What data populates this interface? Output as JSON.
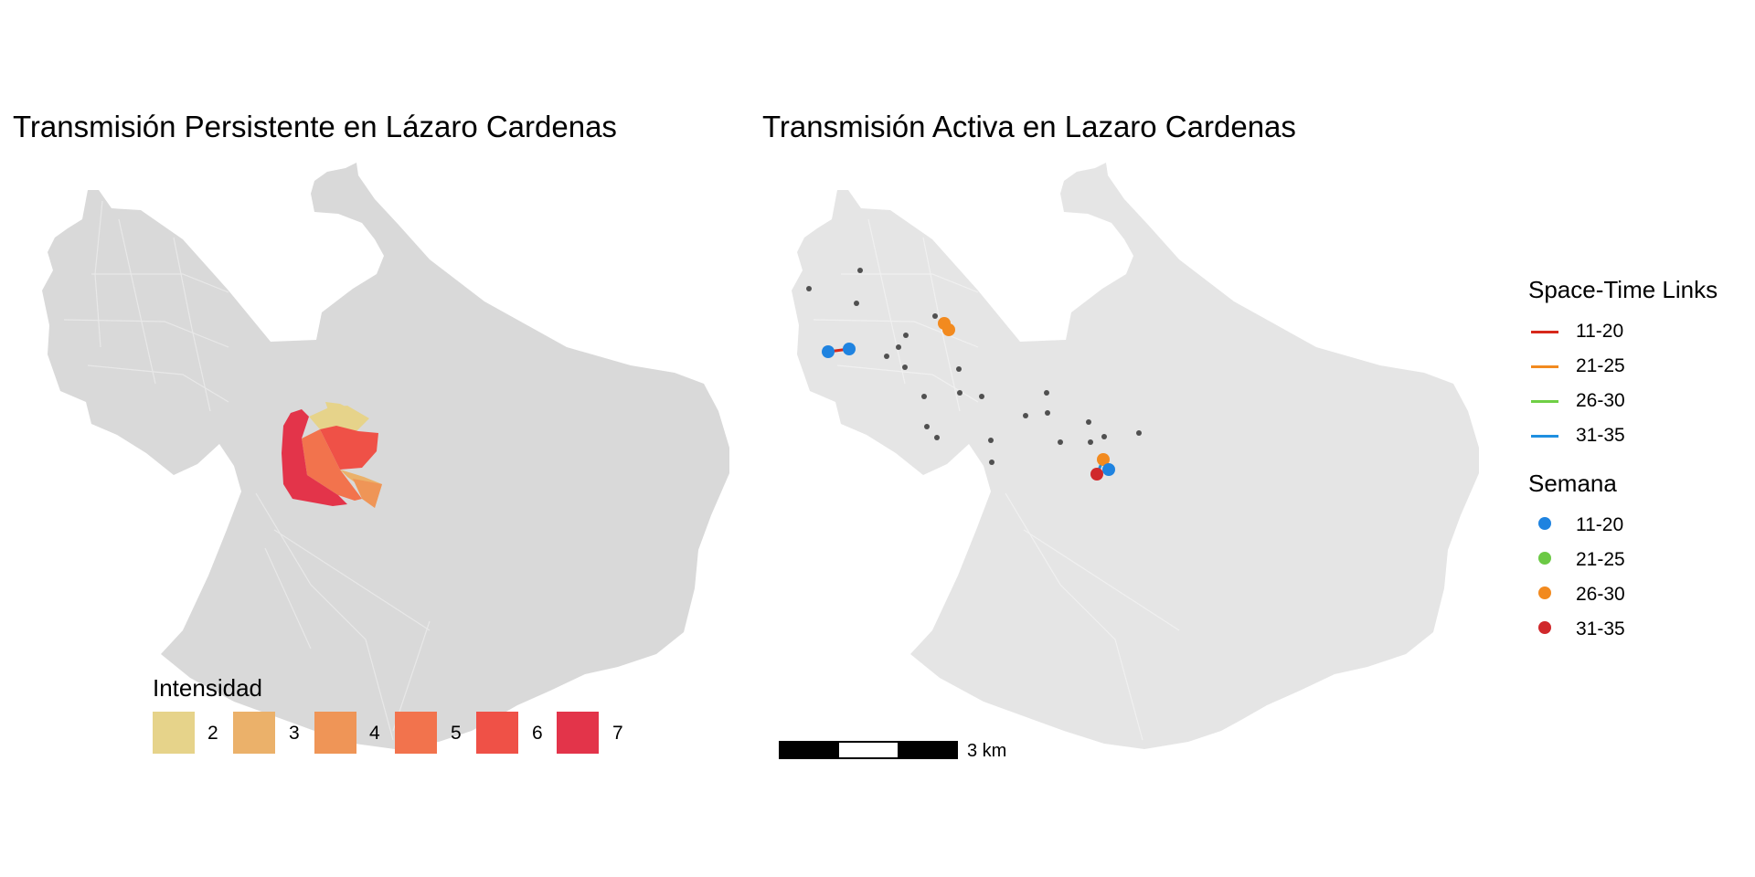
{
  "left_panel": {
    "title": "Transmisión Persistente en Lázaro Cardenas",
    "legend": {
      "title": "Intensidad",
      "items": [
        {
          "label": "2",
          "color": "#e6d38a"
        },
        {
          "label": "3",
          "color": "#ebb16a"
        },
        {
          "label": "4",
          "color": "#ef9557"
        },
        {
          "label": "5",
          "color": "#f2734d"
        },
        {
          "label": "6",
          "color": "#ef5147"
        },
        {
          "label": "7",
          "color": "#e3344a"
        }
      ]
    }
  },
  "right_panel": {
    "title": "Transmisión Activa en Lazaro Cardenas",
    "scalebar_label": "3 km",
    "legend_links": {
      "title": "Space-Time Links",
      "items": [
        {
          "label": "11-20",
          "color": "#d7281b"
        },
        {
          "label": "21-25",
          "color": "#f28a1f"
        },
        {
          "label": "26-30",
          "color": "#6fcf45"
        },
        {
          "label": "31-35",
          "color": "#1f8fe0"
        }
      ]
    },
    "legend_weeks": {
      "title": "Semana",
      "items": [
        {
          "label": "11-20",
          "color": "#1f83e0"
        },
        {
          "label": "21-25",
          "color": "#6cc945"
        },
        {
          "label": "26-30",
          "color": "#f28a1f"
        },
        {
          "label": "31-35",
          "color": "#d0282b"
        }
      ]
    }
  },
  "colors": {
    "base_fill_left": "#d9d9d9",
    "base_fill_right": "#e5e5e5",
    "case_point": "#505050"
  }
}
